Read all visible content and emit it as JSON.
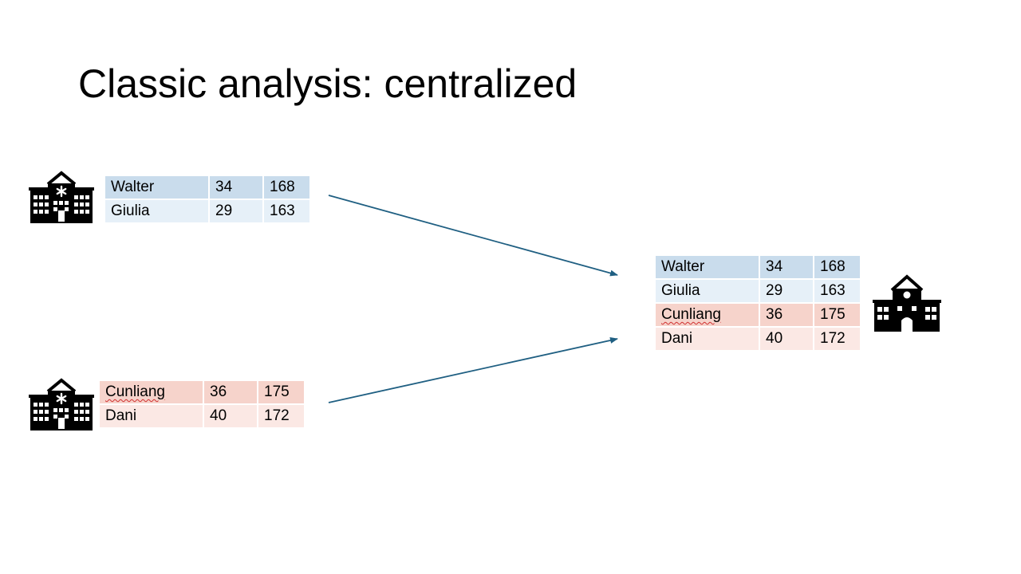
{
  "slide": {
    "title": "Classic analysis: centralized"
  },
  "colors": {
    "blue_a": "#c9dcec",
    "blue_b": "#e6f0f8",
    "red_a": "#f6d3cb",
    "red_b": "#fbe8e4",
    "arrow": "#1f5f82"
  },
  "icons": {
    "hospital_top": "hospital-icon",
    "hospital_bottom": "hospital-icon",
    "school_central": "school-building-icon"
  },
  "tables": {
    "hospital_a": [
      {
        "name": "Walter",
        "age": "34",
        "height": "168"
      },
      {
        "name": "Giulia",
        "age": "29",
        "height": "163"
      }
    ],
    "hospital_b": [
      {
        "name": "Cunliang",
        "age": "36",
        "height": "175"
      },
      {
        "name": "Dani",
        "age": "40",
        "height": "172"
      }
    ],
    "central": [
      {
        "name": "Walter",
        "age": "34",
        "height": "168"
      },
      {
        "name": "Giulia",
        "age": "29",
        "height": "163"
      },
      {
        "name": "Cunliang",
        "age": "36",
        "height": "175"
      },
      {
        "name": "Dani",
        "age": "40",
        "height": "172"
      }
    ]
  }
}
